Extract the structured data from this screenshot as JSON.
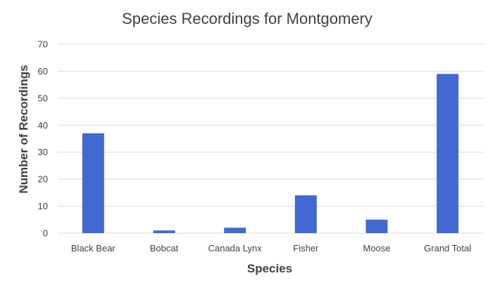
{
  "chart_data": {
    "type": "bar",
    "title": "Species Recordings for Montgomery",
    "xlabel": "Species",
    "ylabel": "Number of Recordings",
    "categories": [
      "Black Bear",
      "Bobcat",
      "Canada Lynx",
      "Fisher",
      "Moose",
      "Grand Total"
    ],
    "values": [
      37,
      1,
      2,
      14,
      5,
      59
    ],
    "ylim": [
      0,
      70
    ],
    "yticks": [
      0,
      10,
      20,
      30,
      40,
      50,
      60,
      70
    ],
    "grid": true,
    "legend": "none",
    "bar_color": "#4169d2"
  }
}
